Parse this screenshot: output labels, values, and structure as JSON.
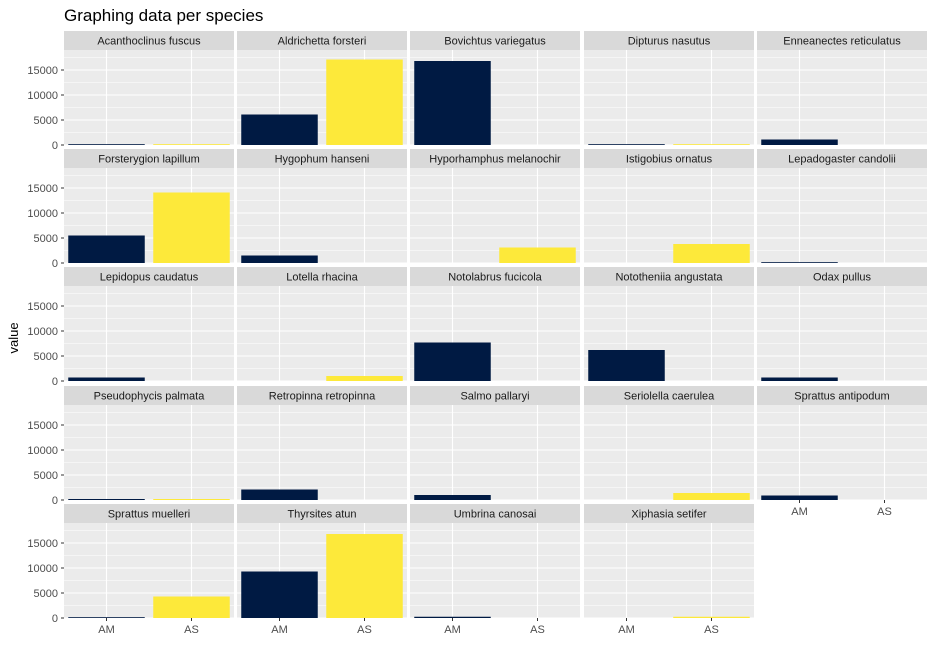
{
  "chart_data": {
    "type": "bar",
    "title": "Graphing data per species",
    "ylabel": "value",
    "xlabel": "",
    "categories": [
      "AM",
      "AS"
    ],
    "ylim": [
      0,
      19000
    ],
    "yticks": [
      0,
      5000,
      10000,
      15000
    ],
    "ncol": 5,
    "colors": {
      "AM": "#001a43",
      "AS": "#fde93a"
    },
    "grid": true,
    "legend": "none",
    "panels": [
      {
        "name": "Acanthoclinus fuscus",
        "values": [
          50,
          50
        ]
      },
      {
        "name": "Aldrichetta forsteri",
        "values": [
          6100,
          17100
        ]
      },
      {
        "name": "Bovichtus variegatus",
        "values": [
          16800,
          0
        ]
      },
      {
        "name": "Dipturus nasutus",
        "values": [
          60,
          60
        ]
      },
      {
        "name": "Enneanectes reticulatus",
        "values": [
          1100,
          0
        ]
      },
      {
        "name": "Forsterygion lapillum",
        "values": [
          5500,
          14100
        ]
      },
      {
        "name": "Hygophum hanseni",
        "values": [
          1500,
          0
        ]
      },
      {
        "name": "Hyporhamphus melanochir",
        "values": [
          0,
          3100
        ]
      },
      {
        "name": "Istigobius ornatus",
        "values": [
          0,
          3800
        ]
      },
      {
        "name": "Lepadogaster candolii",
        "values": [
          150,
          0
        ]
      },
      {
        "name": "Lepidopus caudatus",
        "values": [
          700,
          0
        ]
      },
      {
        "name": "Lotella rhacina",
        "values": [
          0,
          1000
        ]
      },
      {
        "name": "Notolabrus fucicola",
        "values": [
          7700,
          0
        ]
      },
      {
        "name": "Nototheniia angustata",
        "values": [
          6200,
          0
        ]
      },
      {
        "name": "Odax pullus",
        "values": [
          700,
          0
        ]
      },
      {
        "name": "Pseudophycis palmata",
        "values": [
          200,
          200
        ]
      },
      {
        "name": "Retropinna retropinna",
        "values": [
          2100,
          0
        ]
      },
      {
        "name": "Salmo pallaryi",
        "values": [
          1000,
          0
        ]
      },
      {
        "name": "Seriolella caerulea",
        "values": [
          0,
          1400
        ]
      },
      {
        "name": "Sprattus antipodum",
        "values": [
          900,
          0
        ]
      },
      {
        "name": "Sprattus muelleri",
        "values": [
          150,
          4300
        ]
      },
      {
        "name": "Thyrsites atun",
        "values": [
          9300,
          16800
        ]
      },
      {
        "name": "Umbrina canosai",
        "values": [
          250,
          0
        ]
      },
      {
        "name": "Xiphasia setifer",
        "values": [
          0,
          250
        ]
      }
    ]
  }
}
